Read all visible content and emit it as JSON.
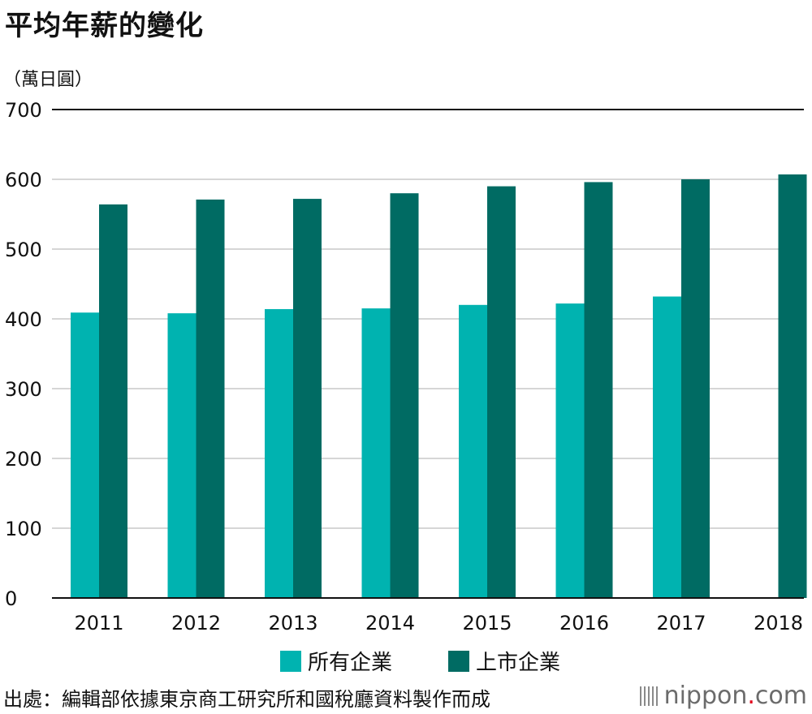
{
  "title": "平均年薪的變化",
  "unit_label": "（萬日圓）",
  "source": "出處：編輯部依據東京商工研究所和國稅廳資料製作而成",
  "logo": {
    "name": "nippon",
    "dot": ".",
    "domain": "com"
  },
  "colors": {
    "all_companies": "#00b3b0",
    "listed_companies": "#006b63",
    "grid": "#c8c8c8",
    "top_line": "#111111"
  },
  "chart_data": {
    "type": "bar",
    "title": "平均年薪的變化",
    "xlabel": "",
    "ylabel": "（萬日圓）",
    "ylim": [
      0,
      700
    ],
    "yticks": [
      0,
      100,
      200,
      300,
      400,
      500,
      600,
      700
    ],
    "categories": [
      "2011",
      "2012",
      "2013",
      "2014",
      "2015",
      "2016",
      "2017",
      "2018"
    ],
    "series": [
      {
        "name": "所有企業",
        "values": [
          409,
          408,
          414,
          415,
          420,
          422,
          432,
          null
        ]
      },
      {
        "name": "上市企業",
        "values": [
          564,
          571,
          572,
          580,
          590,
          596,
          600,
          607
        ]
      }
    ],
    "legend_position": "bottom-center",
    "grid": true
  }
}
